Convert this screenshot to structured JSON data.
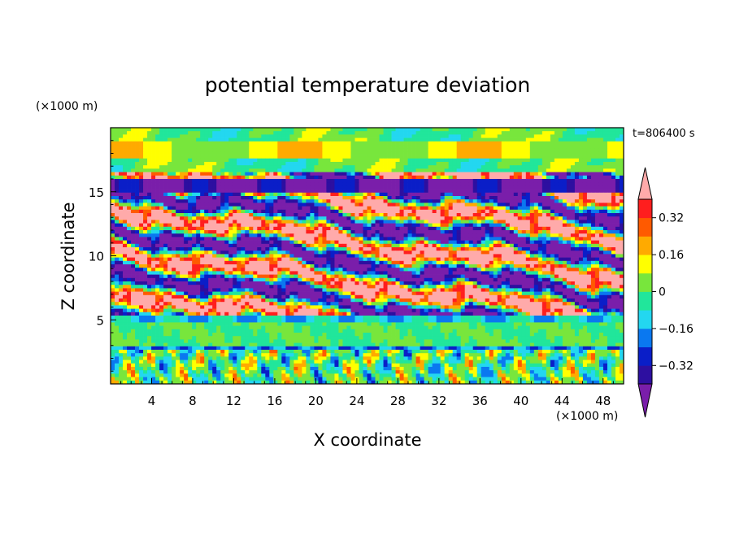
{
  "chart_data": {
    "type": "heatmap",
    "title": "potential temperature deviation",
    "time_label": "t=806400 s",
    "xlabel": "X coordinate",
    "ylabel": "Z coordinate",
    "x_unit": "(×1000 m)",
    "y_unit": "(×1000 m)",
    "xlim": [
      0,
      50
    ],
    "ylim": [
      0,
      20
    ],
    "x_ticks": [
      4,
      8,
      12,
      16,
      20,
      24,
      28,
      32,
      36,
      40,
      44,
      48
    ],
    "y_ticks": [
      5,
      10,
      15
    ],
    "colorbar": {
      "levels": [
        -0.4,
        -0.32,
        -0.24,
        -0.16,
        -0.08,
        0,
        0.08,
        0.16,
        0.24,
        0.32,
        0.4
      ],
      "labeled_ticks": [
        0.32,
        0.16,
        0,
        -0.16,
        -0.32
      ],
      "tick_labels": [
        "0.32",
        "0.16",
        "0",
        "−0.16",
        "−0.32"
      ],
      "colors": [
        "#7a1eaa",
        "#2d0fa0",
        "#0a1ec8",
        "#0a78f0",
        "#23d7f0",
        "#21e69b",
        "#78e63c",
        "#ffff00",
        "#ffaa00",
        "#ff5a00",
        "#ff1e1e",
        "#ffaaaa"
      ],
      "extend": "both"
    },
    "layers": [
      {
        "z_range": [
          0,
          2.9
        ],
        "description": "lower layer with vertical plumes",
        "dominant_range": [
          -0.16,
          0.16
        ]
      },
      {
        "z_range": [
          2.9,
          5.2
        ],
        "description": "near-neutral layer",
        "dominant_range": [
          -0.08,
          0.08
        ]
      },
      {
        "z_range": [
          5.2,
          16.5
        ],
        "description": "tilted bands of strong positive and negative deviation",
        "dominant_range": [
          -0.4,
          0.4
        ]
      },
      {
        "z_range": [
          16.5,
          20
        ],
        "description": "upper near-neutral layer",
        "dominant_range": [
          -0.08,
          0.16
        ]
      }
    ]
  }
}
